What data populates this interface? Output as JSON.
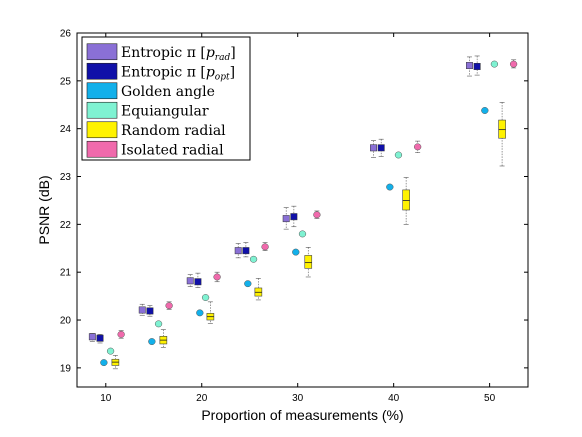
{
  "chart_data": {
    "type": "box",
    "xlabel": "Proportion of measurements (%)",
    "ylabel": "PSNR (dB)",
    "xlim": [
      7,
      54
    ],
    "ylim": [
      18.6,
      26
    ],
    "xticks": [
      10,
      20,
      30,
      40,
      50
    ],
    "yticks": [
      19,
      20,
      21,
      22,
      23,
      24,
      25,
      26
    ],
    "grid": false,
    "legend_position": "top-left",
    "group_centers": [
      10,
      15,
      20,
      25,
      30,
      40,
      50
    ],
    "series": [
      {
        "name": "Entropic π [p_rad]",
        "legend_main": "Entropic π [",
        "legend_sub": "rad",
        "legend_close": "]",
        "color": "#8a70d6",
        "marker": "square",
        "x": [
          8.6,
          13.8,
          18.8,
          23.8,
          28.8,
          37.9,
          47.9
        ],
        "values": [
          19.65,
          20.21,
          20.82,
          21.45,
          22.12,
          23.6,
          25.32
        ],
        "whisker_low": [
          19.55,
          20.1,
          20.7,
          21.3,
          21.9,
          23.4,
          25.1
        ],
        "whisker_high": [
          19.72,
          20.33,
          20.95,
          21.6,
          22.35,
          23.75,
          25.5
        ]
      },
      {
        "name": "Entropic π [p_opt]",
        "legend_main": "Entropic π [",
        "legend_sub": "opt",
        "legend_close": "]",
        "color": "#1010a8",
        "marker": "square",
        "x": [
          9.4,
          14.6,
          19.6,
          24.6,
          29.6,
          38.7,
          48.7
        ],
        "values": [
          19.62,
          20.19,
          20.8,
          21.45,
          22.16,
          23.6,
          25.3
        ],
        "whisker_low": [
          19.52,
          20.08,
          20.68,
          21.32,
          21.95,
          23.42,
          25.12
        ],
        "whisker_high": [
          19.7,
          20.3,
          20.98,
          21.62,
          22.38,
          23.78,
          25.52
        ]
      },
      {
        "name": "Golden angle",
        "color": "#12b0ea",
        "marker": "circle",
        "x": [
          9.8,
          14.8,
          19.8,
          24.8,
          29.8,
          39.6,
          49.5
        ],
        "values": [
          19.11,
          19.55,
          20.15,
          20.76,
          21.42,
          22.78,
          24.38
        ]
      },
      {
        "name": "Equiangular",
        "color": "#7ff2d2",
        "marker": "circle",
        "x": [
          10.5,
          15.5,
          20.4,
          25.4,
          30.5,
          40.5,
          50.5
        ],
        "values": [
          19.35,
          19.92,
          20.47,
          21.27,
          21.8,
          23.45,
          25.35
        ]
      },
      {
        "name": "Random radial",
        "color": "#fff200",
        "marker": "box",
        "x": [
          11.0,
          16.0,
          20.9,
          25.9,
          31.1,
          41.3,
          51.3
        ],
        "values": [
          19.12,
          19.58,
          20.07,
          20.58,
          21.2,
          22.5,
          23.98
        ],
        "q1": [
          19.05,
          19.5,
          20.0,
          20.5,
          21.08,
          22.3,
          23.8
        ],
        "q3": [
          19.18,
          19.66,
          20.14,
          20.67,
          21.35,
          22.72,
          24.18
        ],
        "whisker_low": [
          18.98,
          19.43,
          19.93,
          20.42,
          20.9,
          22.0,
          23.22
        ],
        "whisker_high": [
          19.26,
          19.8,
          20.38,
          20.87,
          21.52,
          22.98,
          24.55
        ]
      },
      {
        "name": "Isolated radial",
        "color": "#f06aac",
        "marker": "circle",
        "x": [
          11.6,
          16.6,
          21.6,
          26.6,
          32.0,
          42.5,
          52.5
        ],
        "values": [
          19.7,
          20.3,
          20.9,
          21.53,
          22.2,
          23.62,
          25.35
        ],
        "whisker_low": [
          19.62,
          20.22,
          20.8,
          21.45,
          22.12,
          23.5,
          25.27
        ],
        "whisker_high": [
          19.78,
          20.38,
          21.0,
          21.62,
          22.28,
          23.74,
          25.44
        ]
      }
    ]
  }
}
